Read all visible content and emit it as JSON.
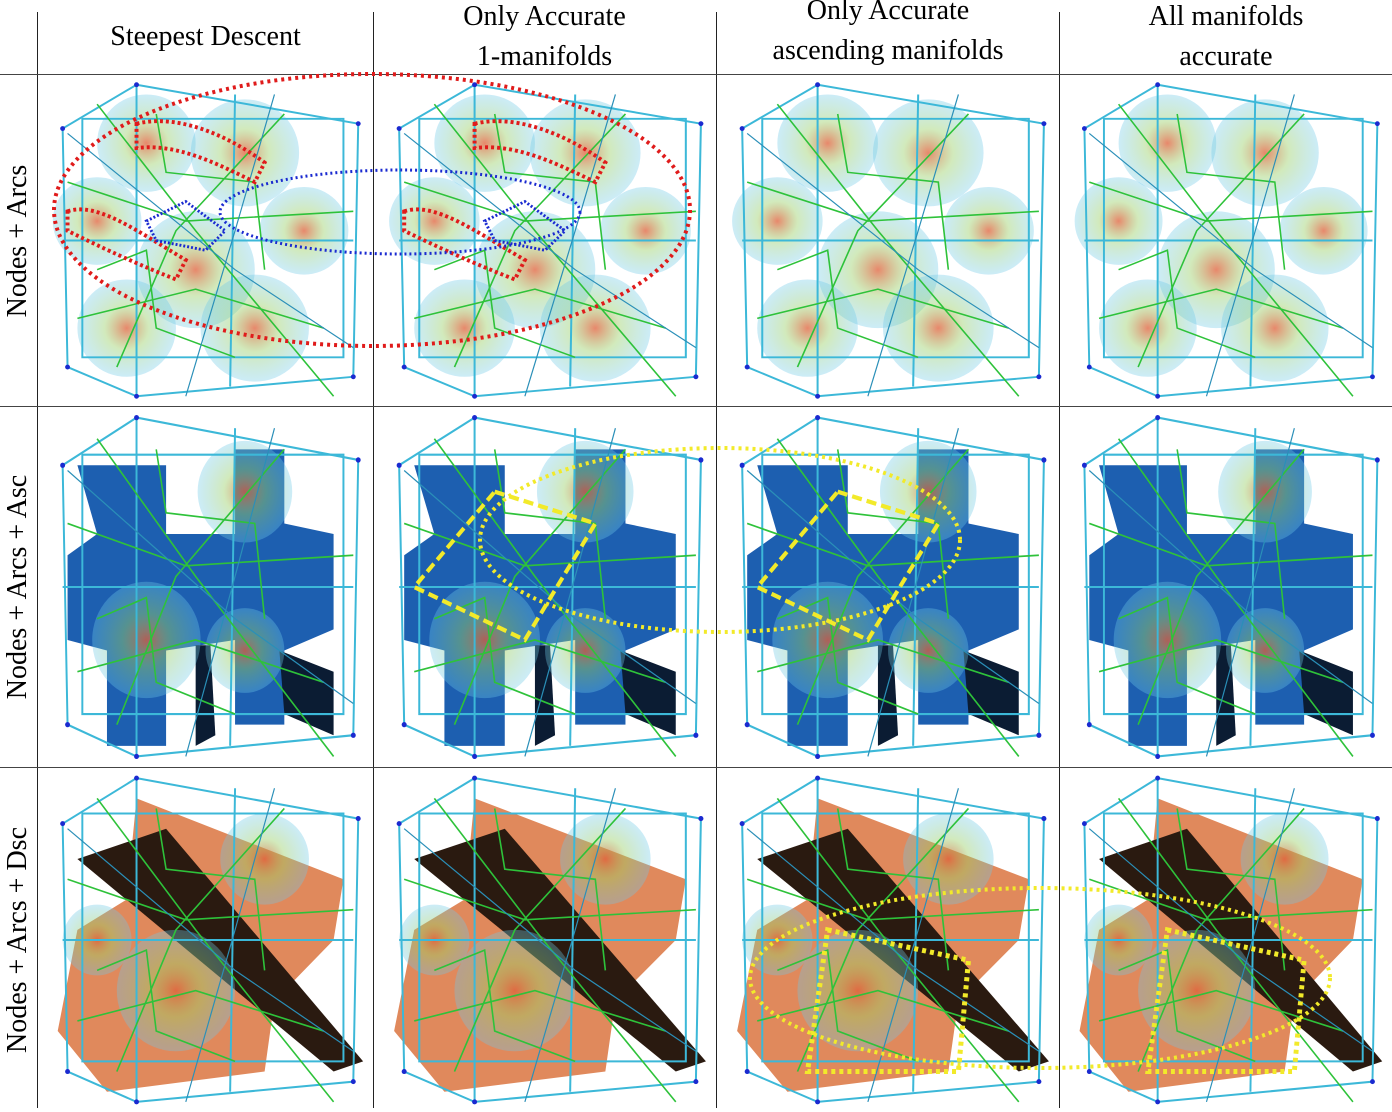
{
  "columns": [
    {
      "line1": "Steepest Descent",
      "line2": ""
    },
    {
      "line1": "Only Accurate",
      "line2": "1-manifolds"
    },
    {
      "line1": "Only Accurate",
      "line2": "ascending manifolds"
    },
    {
      "line1": "All manifolds",
      "line2": "accurate"
    }
  ],
  "rows": [
    {
      "label": "Nodes + Arcs"
    },
    {
      "label": "Nodes + Arcs + Asc"
    },
    {
      "label": "Nodes + Arcs + Dsc"
    }
  ],
  "colors": {
    "arc_cyan": "#3cb8d8",
    "arc_green": "#2ec23a",
    "ascending_blue": "#1d5fb0",
    "descending_orange": "#e0895c",
    "dark_sheet": "#2a1a10",
    "highlight_red": "#e01b1b",
    "highlight_blue": "#1a2ad0",
    "highlight_yellow": "#f2ea2a"
  }
}
